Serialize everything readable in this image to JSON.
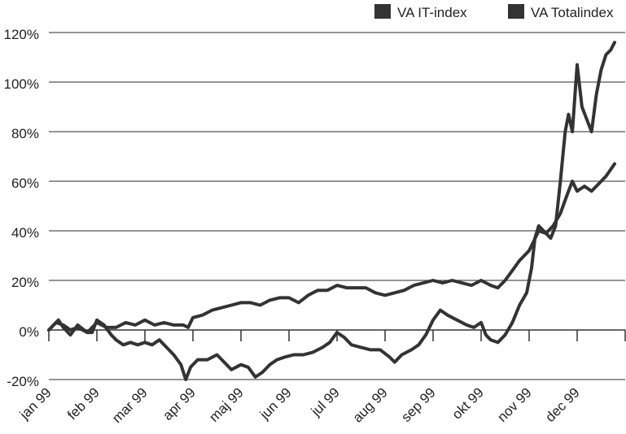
{
  "chart_data": {
    "type": "line",
    "title": "",
    "xlabel": "",
    "ylabel": "",
    "x_categories": [
      "jan 99",
      "feb 99",
      "mar 99",
      "apr 99",
      "maj 99",
      "jun 99",
      "jul 99",
      "aug 99",
      "sep 99",
      "okt 99",
      "nov 99",
      "dec 99"
    ],
    "y_ticks": [
      "120%",
      "100%",
      "80%",
      "60%",
      "40%",
      "20%",
      "0%",
      "-20%"
    ],
    "ylim": [
      -20,
      120
    ],
    "grid": true,
    "legend_position": "top-right",
    "series": [
      {
        "name": "VA IT-index",
        "color": "#333333",
        "points": [
          [
            0,
            0
          ],
          [
            0.1,
            2
          ],
          [
            0.2,
            4
          ],
          [
            0.3,
            1
          ],
          [
            0.45,
            -2
          ],
          [
            0.6,
            2
          ],
          [
            0.8,
            -1
          ],
          [
            0.9,
            -1
          ],
          [
            1.0,
            4
          ],
          [
            1.15,
            2
          ],
          [
            1.3,
            -2
          ],
          [
            1.4,
            -4
          ],
          [
            1.55,
            -6
          ],
          [
            1.7,
            -5
          ],
          [
            1.85,
            -6
          ],
          [
            2.0,
            -5
          ],
          [
            2.15,
            -6
          ],
          [
            2.3,
            -4
          ],
          [
            2.45,
            -7
          ],
          [
            2.6,
            -10
          ],
          [
            2.75,
            -14
          ],
          [
            2.85,
            -20
          ],
          [
            2.95,
            -15
          ],
          [
            3.1,
            -12
          ],
          [
            3.3,
            -12
          ],
          [
            3.5,
            -10
          ],
          [
            3.65,
            -13
          ],
          [
            3.8,
            -16
          ],
          [
            4.0,
            -14
          ],
          [
            4.15,
            -15
          ],
          [
            4.3,
            -19
          ],
          [
            4.45,
            -17
          ],
          [
            4.6,
            -14
          ],
          [
            4.75,
            -12
          ],
          [
            4.9,
            -11
          ],
          [
            5.1,
            -10
          ],
          [
            5.3,
            -10
          ],
          [
            5.5,
            -9
          ],
          [
            5.7,
            -7
          ],
          [
            5.85,
            -5
          ],
          [
            6.0,
            -1
          ],
          [
            6.15,
            -3
          ],
          [
            6.3,
            -6
          ],
          [
            6.5,
            -7
          ],
          [
            6.7,
            -8
          ],
          [
            6.9,
            -8
          ],
          [
            7.1,
            -11
          ],
          [
            7.2,
            -13
          ],
          [
            7.35,
            -10
          ],
          [
            7.55,
            -8
          ],
          [
            7.7,
            -6
          ],
          [
            7.85,
            -2
          ],
          [
            8.0,
            4
          ],
          [
            8.15,
            8
          ],
          [
            8.3,
            6
          ],
          [
            8.5,
            4
          ],
          [
            8.7,
            2
          ],
          [
            8.85,
            1
          ],
          [
            9.0,
            3
          ],
          [
            9.1,
            -2
          ],
          [
            9.2,
            -4
          ],
          [
            9.35,
            -5
          ],
          [
            9.5,
            -2
          ],
          [
            9.65,
            3
          ],
          [
            9.8,
            10
          ],
          [
            9.95,
            15
          ],
          [
            10.05,
            25
          ],
          [
            10.12,
            37
          ],
          [
            10.2,
            42
          ],
          [
            10.3,
            40
          ],
          [
            10.45,
            37
          ],
          [
            10.55,
            42
          ],
          [
            10.65,
            60
          ],
          [
            10.75,
            80
          ],
          [
            10.82,
            87
          ],
          [
            10.9,
            80
          ],
          [
            11.0,
            107
          ],
          [
            11.1,
            90
          ],
          [
            11.2,
            85
          ],
          [
            11.3,
            80
          ],
          [
            11.4,
            95
          ],
          [
            11.5,
            105
          ],
          [
            11.6,
            111
          ],
          [
            11.7,
            113
          ],
          [
            11.78,
            116
          ]
        ]
      },
      {
        "name": "VA Totalindex",
        "color": "#333333",
        "points": [
          [
            0,
            0
          ],
          [
            0.15,
            3
          ],
          [
            0.3,
            2
          ],
          [
            0.45,
            0
          ],
          [
            0.6,
            1
          ],
          [
            0.8,
            -1
          ],
          [
            1.0,
            3
          ],
          [
            1.2,
            1
          ],
          [
            1.4,
            1
          ],
          [
            1.6,
            3
          ],
          [
            1.8,
            2
          ],
          [
            2.0,
            4
          ],
          [
            2.2,
            2
          ],
          [
            2.4,
            3
          ],
          [
            2.6,
            2
          ],
          [
            2.8,
            2
          ],
          [
            2.9,
            1
          ],
          [
            3.0,
            5
          ],
          [
            3.2,
            6
          ],
          [
            3.4,
            8
          ],
          [
            3.6,
            9
          ],
          [
            3.8,
            10
          ],
          [
            4.0,
            11
          ],
          [
            4.2,
            11
          ],
          [
            4.4,
            10
          ],
          [
            4.6,
            12
          ],
          [
            4.8,
            13
          ],
          [
            5.0,
            13
          ],
          [
            5.2,
            11
          ],
          [
            5.4,
            14
          ],
          [
            5.6,
            16
          ],
          [
            5.8,
            16
          ],
          [
            6.0,
            18
          ],
          [
            6.2,
            17
          ],
          [
            6.4,
            17
          ],
          [
            6.6,
            17
          ],
          [
            6.8,
            15
          ],
          [
            7.0,
            14
          ],
          [
            7.2,
            15
          ],
          [
            7.4,
            16
          ],
          [
            7.6,
            18
          ],
          [
            7.8,
            19
          ],
          [
            8.0,
            20
          ],
          [
            8.2,
            19
          ],
          [
            8.4,
            20
          ],
          [
            8.6,
            19
          ],
          [
            8.8,
            18
          ],
          [
            9.0,
            20
          ],
          [
            9.2,
            18
          ],
          [
            9.35,
            17
          ],
          [
            9.5,
            20
          ],
          [
            9.65,
            24
          ],
          [
            9.8,
            28
          ],
          [
            10.0,
            32
          ],
          [
            10.1,
            36
          ],
          [
            10.2,
            40
          ],
          [
            10.35,
            39
          ],
          [
            10.5,
            42
          ],
          [
            10.65,
            47
          ],
          [
            10.8,
            55
          ],
          [
            10.9,
            60
          ],
          [
            11.0,
            56
          ],
          [
            11.15,
            58
          ],
          [
            11.3,
            56
          ],
          [
            11.45,
            59
          ],
          [
            11.6,
            62
          ],
          [
            11.78,
            67
          ]
        ]
      }
    ]
  }
}
